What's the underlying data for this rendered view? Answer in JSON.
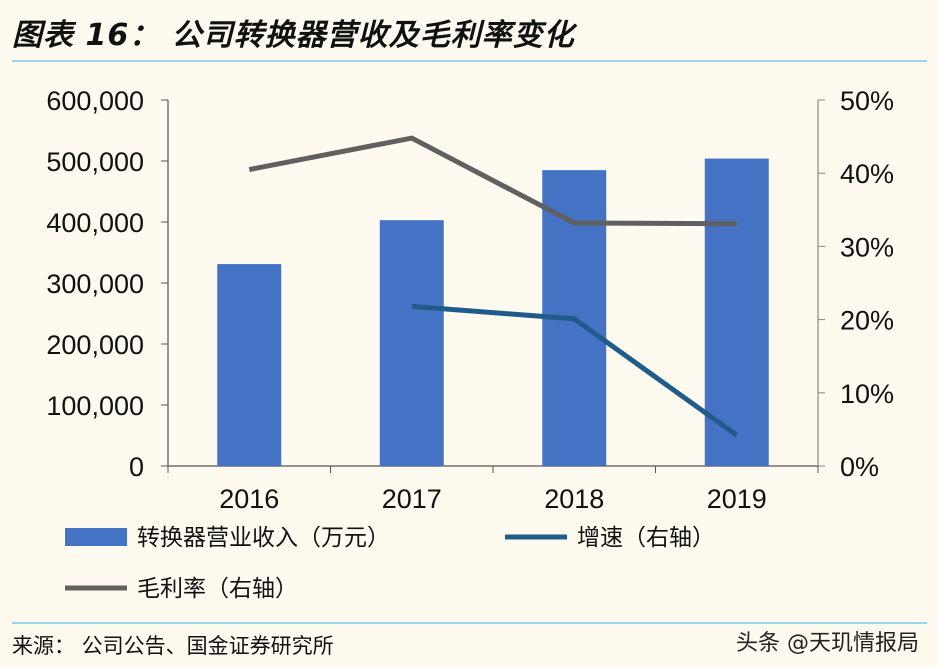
{
  "title": "图表 16：  公司转换器营收及毛利率变化",
  "source": "来源：  公司公告、国金证券研究所",
  "watermark": "头条 @天玑情报局",
  "chart_data": {
    "type": "bar+line",
    "categories": [
      "2016",
      "2017",
      "2018",
      "2019"
    ],
    "left_axis": {
      "ylim": [
        0,
        600000
      ],
      "ticks": [
        "0",
        "100,000",
        "200,000",
        "300,000",
        "400,000",
        "500,000",
        "600,000"
      ]
    },
    "right_axis": {
      "ylim": [
        0,
        50
      ],
      "ticks": [
        "0%",
        "10%",
        "20%",
        "30%",
        "40%",
        "50%"
      ]
    },
    "series": [
      {
        "name": "转换器营业收入（万元）",
        "type": "bar",
        "axis": "left",
        "color": "#4472c4",
        "values": [
          331000,
          403000,
          485000,
          504000
        ]
      },
      {
        "name": "增速（右轴）",
        "type": "line",
        "axis": "right",
        "color": "#1f5c8b",
        "values": [
          null,
          21.8,
          20.1,
          4.2
        ]
      },
      {
        "name": "毛利率（右轴）",
        "type": "line",
        "axis": "right",
        "color": "#606060",
        "values": [
          40.5,
          44.8,
          33.2,
          33.1
        ]
      }
    ],
    "legend": "bottom",
    "grid": false
  }
}
